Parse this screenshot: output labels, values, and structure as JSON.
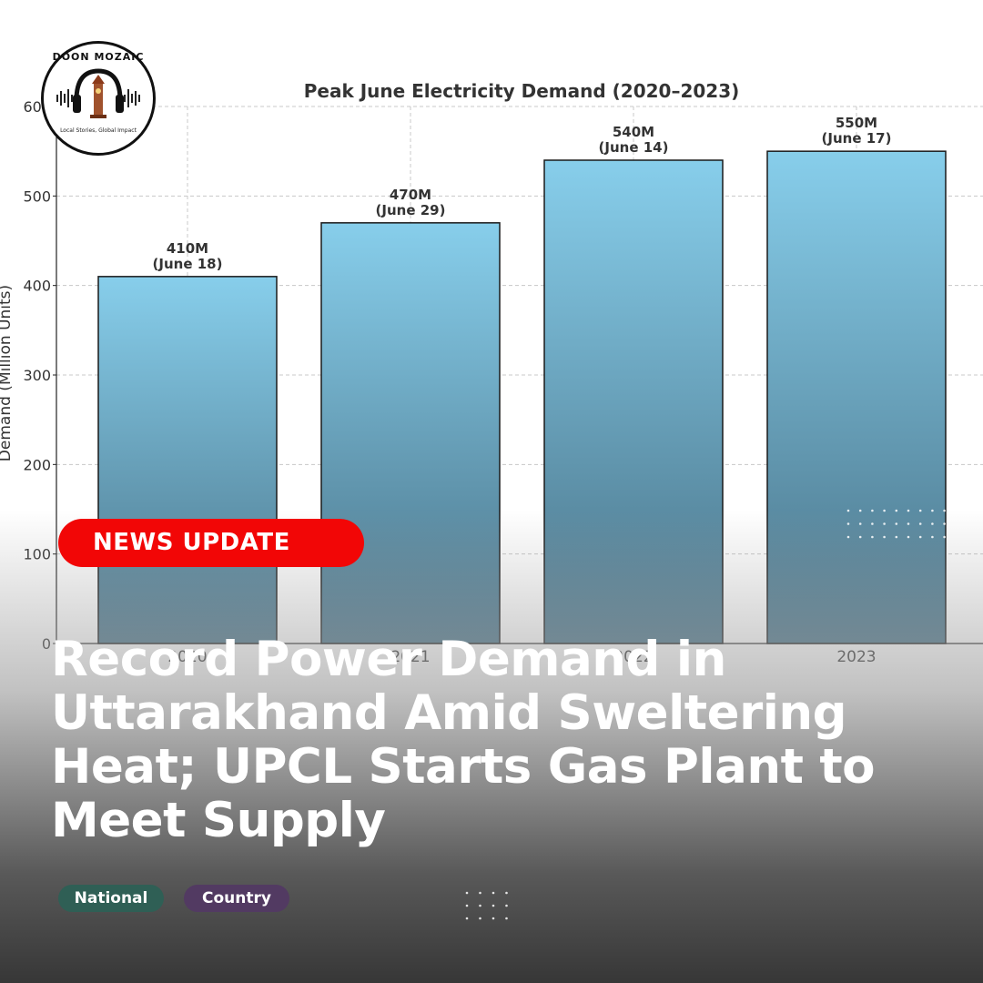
{
  "chart_data": {
    "type": "bar",
    "title": "Peak June Electricity Demand (2020–2023)",
    "ylabel": "Demand (Million Units)",
    "xlabel": "",
    "categories": [
      "2020",
      "2021",
      "2022",
      "2023"
    ],
    "values": [
      410,
      470,
      540,
      550
    ],
    "data_labels": [
      {
        "value": "410M",
        "date": "(June 18)"
      },
      {
        "value": "470M",
        "date": "(June 29)"
      },
      {
        "value": "540M",
        "date": "(June 14)"
      },
      {
        "value": "550M",
        "date": "(June 17)"
      }
    ],
    "ylim": [
      0,
      600
    ],
    "yticks": [
      0,
      100,
      200,
      300,
      400,
      500,
      600
    ],
    "grid": true,
    "bar_color_top": "#87ceeb",
    "bar_color_bottom": "#4a7489"
  },
  "logo": {
    "name": "DOON MOZAIC",
    "tagline": "Local Stories, Global Impact"
  },
  "badge": {
    "label": "NEWS UPDATE",
    "color": "#f20606"
  },
  "headline": "Record Power Demand in Uttarakhand Amid Sweltering Heat; UPCL Starts Gas Plant to Meet Supply",
  "tags": [
    {
      "label": "National",
      "color": "#2f5f55"
    },
    {
      "label": "Country",
      "color": "#523a62"
    }
  ]
}
